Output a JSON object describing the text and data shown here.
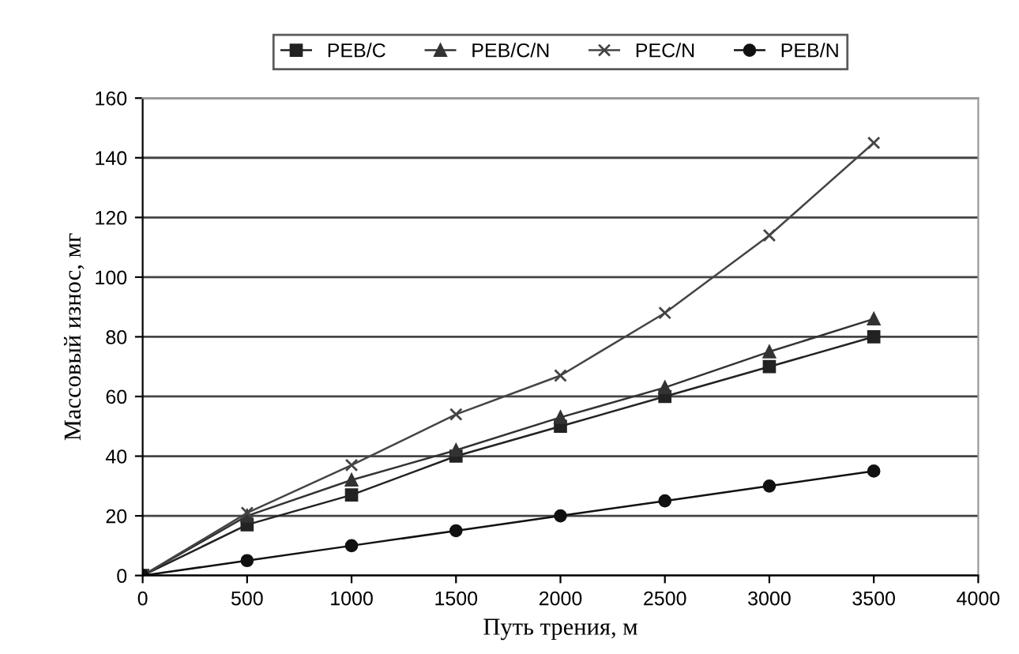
{
  "chart_data": {
    "type": "line",
    "xlabel": "Путь трения, м",
    "ylabel": "Массовый износ, мг",
    "x": [
      0,
      500,
      1000,
      1500,
      2000,
      2500,
      3000,
      3500
    ],
    "series": [
      {
        "name": "PEB/C",
        "color": "#222222",
        "marker": "square",
        "values": [
          0,
          17,
          27,
          40,
          50,
          60,
          70,
          80
        ]
      },
      {
        "name": "PEB/C/N",
        "color": "#333333",
        "marker": "triangle",
        "values": [
          0,
          20,
          32,
          42,
          53,
          63,
          75,
          86
        ]
      },
      {
        "name": "PEC/N",
        "color": "#444444",
        "marker": "cross",
        "values": [
          0,
          21,
          37,
          54,
          67,
          88,
          114,
          145
        ]
      },
      {
        "name": "PEB/N",
        "color": "#111111",
        "marker": "circle",
        "values": [
          0,
          5,
          10,
          15,
          20,
          25,
          30,
          35
        ]
      }
    ],
    "xlim": [
      0,
      4000
    ],
    "xticks": [
      0,
      500,
      1000,
      1500,
      2000,
      2500,
      3000,
      3500,
      4000
    ],
    "ylim": [
      0,
      160
    ],
    "yticks": [
      0,
      20,
      40,
      60,
      80,
      100,
      120,
      140,
      160
    ],
    "grid": "y",
    "legend": "top",
    "line_style": "solid"
  }
}
